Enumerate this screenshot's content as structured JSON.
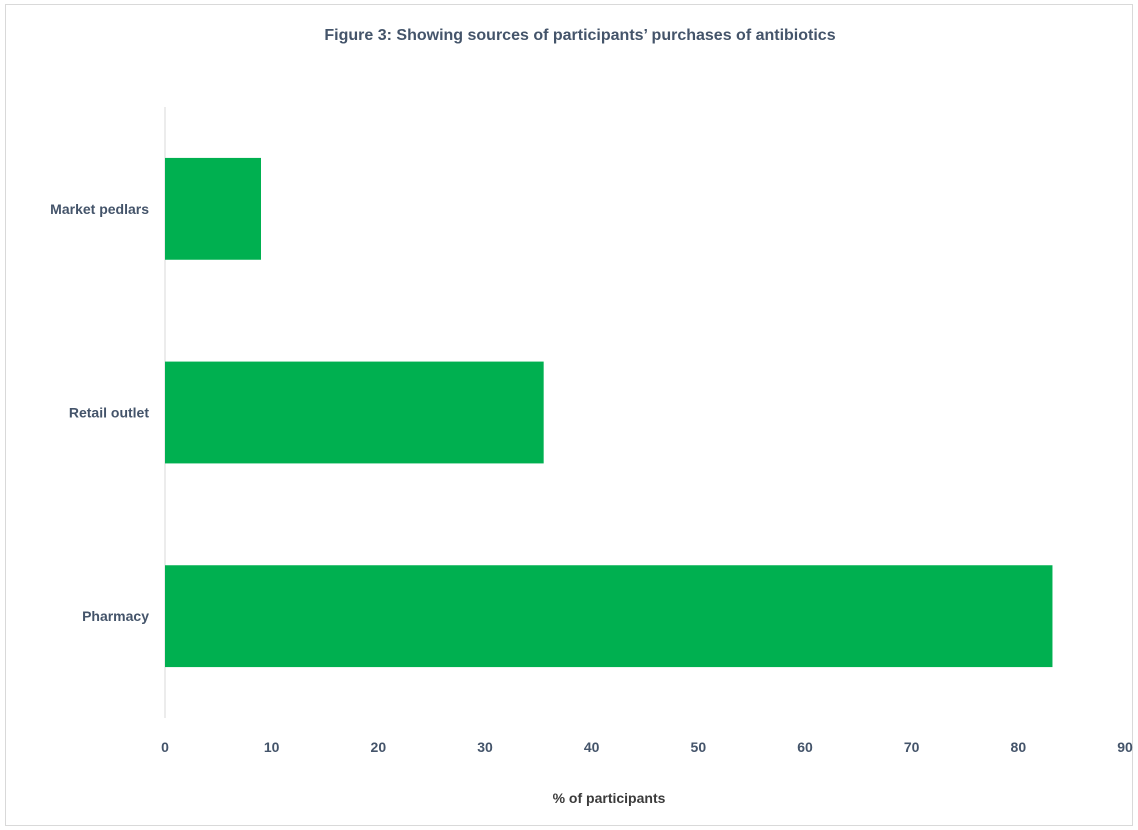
{
  "chart_data": {
    "type": "bar",
    "orientation": "horizontal",
    "title": "Figure 3: Showing sources of participants’ purchases of antibiotics",
    "xlabel": "% of participants",
    "ylabel": "",
    "categories": [
      "Market pedlars",
      "Retail outlet",
      "Pharmacy"
    ],
    "values": [
      9,
      35.5,
      83.2
    ],
    "xlim": [
      0,
      90
    ],
    "xticks": [
      "0",
      "10",
      "20",
      "30",
      "40",
      "50",
      "60",
      "70",
      "80",
      "90"
    ],
    "grid": false,
    "legend": "none",
    "bar_color": "#00b050",
    "axis_color": "#d9d9d9"
  }
}
